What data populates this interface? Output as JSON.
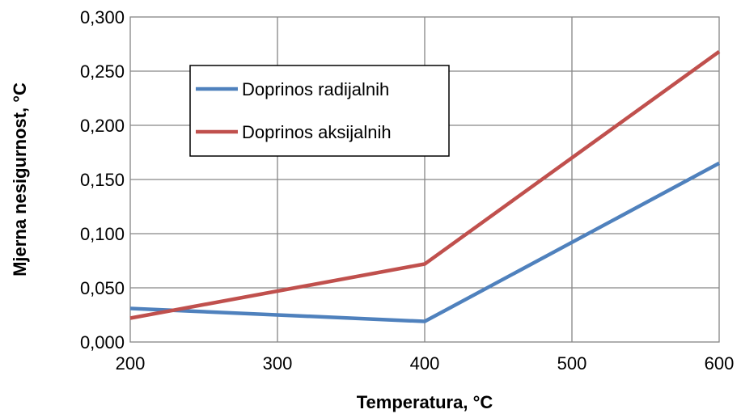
{
  "chart_data": {
    "type": "line",
    "xlabel": "Temperatura, °C",
    "ylabel": "Mjerna nesigurnost, °C",
    "x": [
      200,
      400,
      600
    ],
    "x_ticks": [
      "200",
      "300",
      "400",
      "500",
      "600"
    ],
    "y_ticks": [
      "0,000",
      "0,050",
      "0,100",
      "0,150",
      "0,200",
      "0,250",
      "0,300"
    ],
    "xlim": [
      200,
      600
    ],
    "ylim": [
      0,
      0.3
    ],
    "grid": true,
    "legend_position": "top-left",
    "series": [
      {
        "name": "Doprinos radijalnih",
        "color": "#4f81bd",
        "values": [
          0.031,
          0.019,
          0.165
        ]
      },
      {
        "name": "Doprinos aksijalnih",
        "color": "#c0504d",
        "values": [
          0.022,
          0.072,
          0.268
        ]
      }
    ]
  }
}
